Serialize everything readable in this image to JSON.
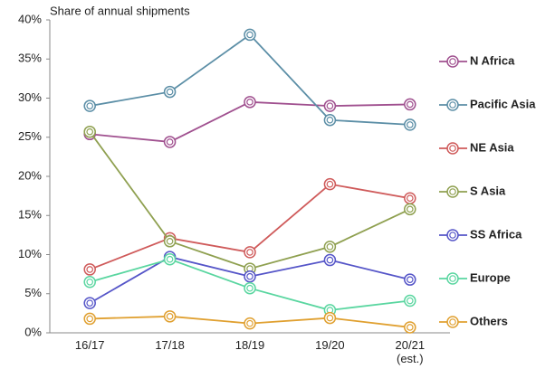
{
  "chart_data": {
    "type": "line",
    "title": "Share of annual shipments",
    "categories": [
      "16/17",
      "17/18",
      "18/19",
      "19/20",
      "20/21\n(est.)"
    ],
    "series": [
      {
        "name": "N Africa",
        "color": "#a0508f",
        "values": [
          25.4,
          24.4,
          29.5,
          29.0,
          29.2
        ]
      },
      {
        "name": "Pacific Asia",
        "color": "#5b8ea6",
        "values": [
          29.0,
          30.8,
          38.1,
          27.2,
          26.6
        ]
      },
      {
        "name": "NE Asia",
        "color": "#cf5a5a",
        "values": [
          8.1,
          12.1,
          10.3,
          19.0,
          17.2
        ]
      },
      {
        "name": "S Asia",
        "color": "#8fa050",
        "values": [
          25.7,
          11.7,
          8.2,
          11.0,
          15.8
        ]
      },
      {
        "name": "SS Africa",
        "color": "#5555c8",
        "values": [
          3.8,
          9.7,
          7.2,
          9.3,
          6.8
        ]
      },
      {
        "name": "Europe",
        "color": "#5ad6a0",
        "values": [
          6.5,
          9.4,
          5.7,
          2.9,
          4.1
        ]
      },
      {
        "name": "Others",
        "color": "#e0a030",
        "values": [
          1.8,
          2.1,
          1.2,
          1.9,
          0.7
        ]
      }
    ],
    "ylim": [
      0,
      40
    ],
    "yticks": [
      {
        "value": 0,
        "label": "0%"
      },
      {
        "value": 5,
        "label": "5%"
      },
      {
        "value": 10,
        "label": "10%"
      },
      {
        "value": 15,
        "label": "15%"
      },
      {
        "value": 20,
        "label": "20%"
      },
      {
        "value": 25,
        "label": "25%"
      },
      {
        "value": 30,
        "label": "30%"
      },
      {
        "value": 35,
        "label": "35%"
      },
      {
        "value": 40,
        "label": "40%"
      }
    ],
    "grid": false,
    "legend": "right"
  }
}
